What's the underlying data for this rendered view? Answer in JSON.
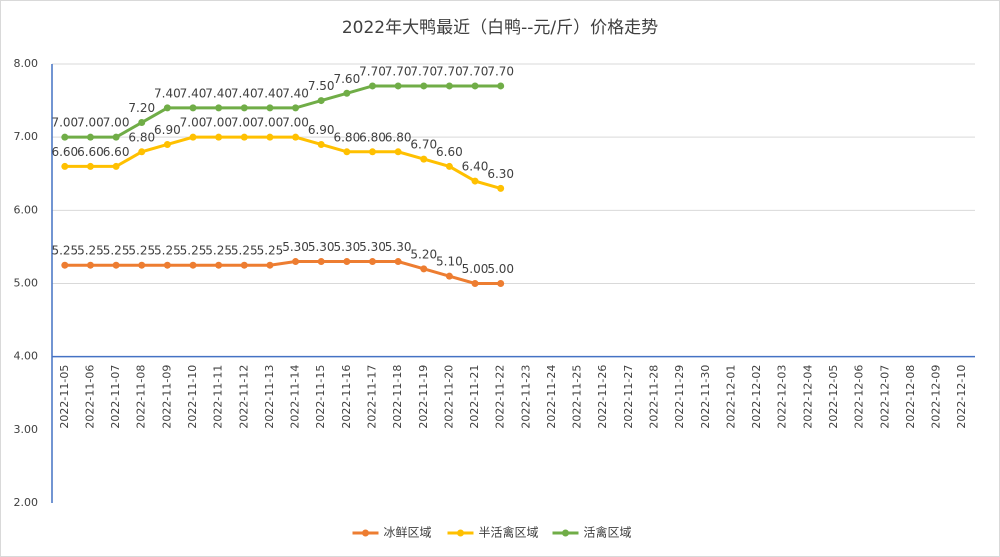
{
  "chart_data": {
    "type": "line",
    "title": "2022年大鸭最近（白鸭--元/斤）价格走势",
    "categories": [
      "2022-11-05",
      "2022-11-06",
      "2022-11-07",
      "2022-11-08",
      "2022-11-09",
      "2022-11-10",
      "2022-11-11",
      "2022-11-12",
      "2022-11-13",
      "2022-11-14",
      "2022-11-15",
      "2022-11-16",
      "2022-11-17",
      "2022-11-18",
      "2022-11-19",
      "2022-11-20",
      "2022-11-21",
      "2022-11-22",
      "2022-11-23",
      "2022-11-24",
      "2022-11-25",
      "2022-11-26",
      "2022-11-27",
      "2022-11-28",
      "2022-11-29",
      "2022-11-30",
      "2022-12-01",
      "2022-12-02",
      "2022-12-03",
      "2022-12-04",
      "2022-12-05",
      "2022-12-06",
      "2022-12-07",
      "2022-12-08",
      "2022-12-09",
      "2022-12-10"
    ],
    "series": [
      {
        "name": "冰鲜区域",
        "color": "#ed7d31",
        "values": [
          5.25,
          5.25,
          5.25,
          5.25,
          5.25,
          5.25,
          5.25,
          5.25,
          5.25,
          5.3,
          5.3,
          5.3,
          5.3,
          5.3,
          5.2,
          5.1,
          5.0,
          5.0,
          null,
          null,
          null,
          null,
          null,
          null,
          null,
          null,
          null,
          null,
          null,
          null,
          null,
          null,
          null,
          null,
          null,
          null
        ],
        "value_labels": [
          "5.25",
          "5.25",
          "5.25",
          "5.25",
          "5.25",
          "5.25",
          "5.25",
          "5.25",
          "5.25",
          "5.30",
          "5.30",
          "5.30",
          "5.30",
          "5.30",
          "5.20",
          "5.10",
          "5.00",
          "5.00",
          null,
          null,
          null,
          null,
          null,
          null,
          null,
          null,
          null,
          null,
          null,
          null,
          null,
          null,
          null,
          null,
          null,
          null
        ]
      },
      {
        "name": "半活禽区域",
        "color": "#ffc000",
        "values": [
          6.6,
          6.6,
          6.6,
          6.8,
          6.9,
          7.0,
          7.0,
          7.0,
          7.0,
          7.0,
          6.9,
          6.8,
          6.8,
          6.8,
          6.7,
          6.6,
          6.4,
          6.3,
          null,
          null,
          null,
          null,
          null,
          null,
          null,
          null,
          null,
          null,
          null,
          null,
          null,
          null,
          null,
          null,
          null,
          null
        ],
        "value_labels": [
          "6.60",
          "6.60",
          "6.60",
          "6.80",
          "6.90",
          "7.00",
          "7.00",
          "7.00",
          "7.00",
          "7.00",
          "6.90",
          "6.80",
          "6.80",
          "6.80",
          "6.70",
          "6.60",
          "6.40",
          "6.30",
          null,
          null,
          null,
          null,
          null,
          null,
          null,
          null,
          null,
          null,
          null,
          null,
          null,
          null,
          null,
          null,
          null,
          null
        ]
      },
      {
        "name": "活禽区域",
        "color": "#70ad47",
        "values": [
          7.0,
          7.0,
          7.0,
          7.2,
          7.4,
          7.4,
          7.4,
          7.4,
          7.4,
          7.4,
          7.5,
          7.6,
          7.7,
          7.7,
          7.7,
          7.7,
          7.7,
          7.7,
          null,
          null,
          null,
          null,
          null,
          null,
          null,
          null,
          null,
          null,
          null,
          null,
          null,
          null,
          null,
          null,
          null,
          null
        ],
        "value_labels": [
          "7.00",
          "7.00",
          "7.00",
          "7.20",
          "7.40",
          "7.40",
          "7.40",
          "7.40",
          "7.40",
          "7.40",
          "7.50",
          "7.60",
          "7.70",
          "7.70",
          "7.70",
          "7.70",
          "7.70",
          "7.70",
          null,
          null,
          null,
          null,
          null,
          null,
          null,
          null,
          null,
          null,
          null,
          null,
          null,
          null,
          null,
          null,
          null,
          null
        ]
      }
    ],
    "ylim": [
      2,
      8
    ],
    "yticks": [
      {
        "value": 2,
        "label": "2.00"
      },
      {
        "value": 3,
        "label": "3.00"
      },
      {
        "value": 4,
        "label": "4.00"
      },
      {
        "value": 5,
        "label": "5.00"
      },
      {
        "value": 6,
        "label": "6.00"
      },
      {
        "value": 7,
        "label": "7.00"
      },
      {
        "value": 8,
        "label": "8.00"
      }
    ],
    "x_axis_crossing": 4,
    "grid": true,
    "legend": "bottom"
  }
}
